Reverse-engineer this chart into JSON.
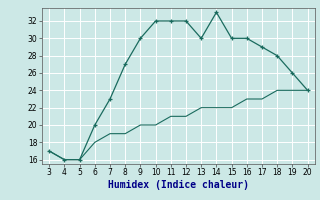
{
  "xlabel": "Humidex (Indice chaleur)",
  "x": [
    3,
    4,
    5,
    6,
    7,
    8,
    9,
    10,
    11,
    12,
    13,
    14,
    15,
    16,
    17,
    18,
    19,
    20
  ],
  "y_line1": [
    17,
    16,
    16,
    20,
    23,
    27,
    30,
    32,
    32,
    32,
    30,
    33,
    30,
    30,
    29,
    28,
    26,
    24
  ],
  "y_line2": [
    17,
    16,
    16,
    18,
    19,
    19,
    20,
    20,
    21,
    21,
    22,
    22,
    22,
    23,
    23,
    24,
    24,
    24
  ],
  "line_color": "#1a6b5e",
  "bg_color": "#cce8e6",
  "grid_color": "#ffffff",
  "ylim": [
    15.5,
    33.5
  ],
  "xlim": [
    2.5,
    20.5
  ],
  "yticks": [
    16,
    18,
    20,
    22,
    24,
    26,
    28,
    30,
    32
  ],
  "xticks": [
    3,
    4,
    5,
    6,
    7,
    8,
    9,
    10,
    11,
    12,
    13,
    14,
    15,
    16,
    17,
    18,
    19,
    20
  ],
  "tick_fontsize": 5.5,
  "xlabel_fontsize": 7
}
